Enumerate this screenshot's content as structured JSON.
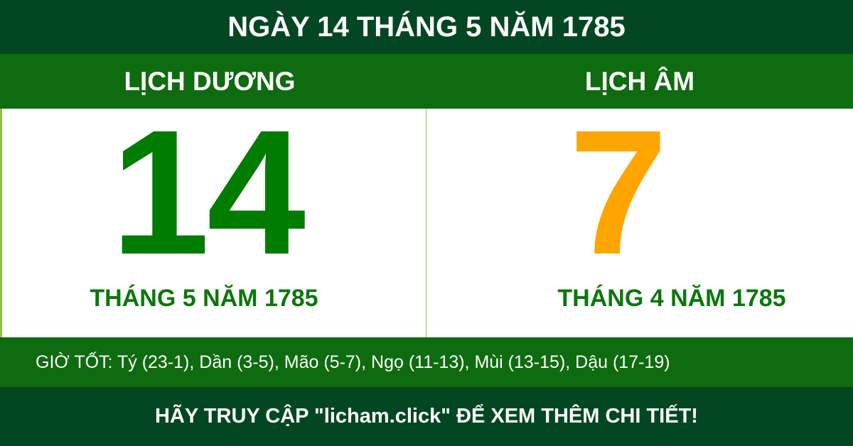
{
  "header": {
    "title": "NGÀY 14 THÁNG 5 NĂM 1785"
  },
  "solar": {
    "label": "LỊCH DƯƠNG",
    "day": "14",
    "month_year": "THÁNG 5 NĂM 1785"
  },
  "lunar": {
    "label": "LỊCH ÂM",
    "day": "7",
    "month_year": "THÁNG 4 NĂM 1785"
  },
  "good_hours": "GIỜ TỐT: Tý (23-1), Dần (3-5), Mão (5-7), Ngọ (11-13), Mùi (13-15), Dậu (17-19)",
  "footer": "HÃY TRUY CẬP \"licham.click\" ĐỂ XEM THÊM CHI TIẾT!",
  "colors": {
    "dark_green": "#034722",
    "green": "#0f6b0f",
    "solar_day": "#007c00",
    "lunar_day": "#ffa500"
  }
}
